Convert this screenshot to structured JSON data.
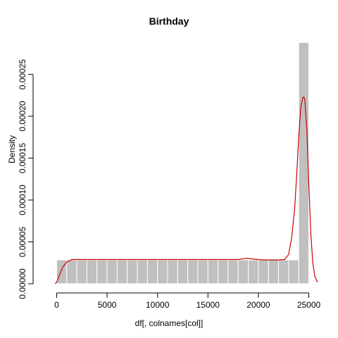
{
  "chart_data": {
    "type": "bar",
    "title": "Birthday",
    "xlabel": "df[, colnames[col]]",
    "ylabel": "Density",
    "xlim": [
      -1500,
      26500
    ],
    "ylim": [
      0,
      0.00029
    ],
    "xticks": [
      0,
      5000,
      10000,
      15000,
      20000,
      25000
    ],
    "yticks": [
      0,
      5e-05,
      0.0001,
      0.00015,
      0.0002,
      0.00025
    ],
    "ytick_labels": [
      "0.00000",
      "0.00005",
      "0.00010",
      "0.00015",
      "0.00020",
      "0.00025"
    ],
    "bin_width": 1000,
    "bin_starts": [
      0,
      1000,
      2000,
      3000,
      4000,
      5000,
      6000,
      7000,
      8000,
      9000,
      10000,
      11000,
      12000,
      13000,
      14000,
      15000,
      16000,
      17000,
      18000,
      19000,
      20000,
      21000,
      22000,
      23000,
      24000
    ],
    "values": [
      2.85e-05,
      2.85e-05,
      2.85e-05,
      2.85e-05,
      2.85e-05,
      2.85e-05,
      2.85e-05,
      2.85e-05,
      2.85e-05,
      2.85e-05,
      2.85e-05,
      2.85e-05,
      2.85e-05,
      2.85e-05,
      2.85e-05,
      2.85e-05,
      2.85e-05,
      2.85e-05,
      2.85e-05,
      2.85e-05,
      2.85e-05,
      2.85e-05,
      2.85e-05,
      2.85e-05,
      0.000288
    ],
    "bar_color": "#c0c0c0",
    "density_curve": {
      "color": "#cc0000",
      "x": [
        -150,
        0,
        300,
        600,
        1000,
        1500,
        3000,
        6000,
        10000,
        14000,
        18000,
        18900,
        19500,
        20500,
        22000,
        22600,
        23000,
        23300,
        23600,
        23800,
        24000,
        24200,
        24400,
        24500,
        24600,
        24800,
        25000,
        25200,
        25400,
        25600,
        25800,
        25900
      ],
      "y": [
        0,
        2e-06,
        1.1e-05,
        2e-05,
        2.6e-05,
        2.9e-05,
        2.9e-05,
        2.9e-05,
        2.9e-05,
        2.9e-05,
        2.9e-05,
        3.05e-05,
        2.95e-05,
        2.85e-05,
        2.85e-05,
        2.9e-05,
        3.5e-05,
        5.5e-05,
        9e-05,
        0.00013,
        0.000175,
        0.00021,
        0.000222,
        0.000223,
        0.00022,
        0.000185,
        0.00012,
        6e-05,
        2.5e-05,
        9e-06,
        3e-06,
        2e-06
      ]
    }
  }
}
